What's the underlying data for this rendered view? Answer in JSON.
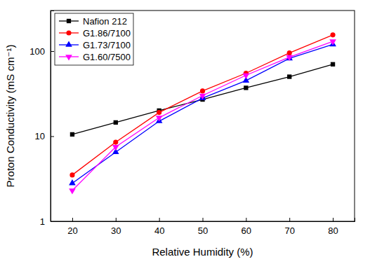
{
  "chart_data": {
    "type": "line",
    "x_label": "Relative Humidity (%)",
    "y_label": "Proton Conductivity (mS cm⁻¹)",
    "x": [
      20,
      30,
      40,
      50,
      60,
      70,
      80
    ],
    "series": [
      {
        "name": "Nafion 212",
        "color": "#000000",
        "marker": "square",
        "values": [
          10.5,
          14.5,
          20,
          27,
          37,
          50,
          70
        ]
      },
      {
        "name": "G1.86/7100",
        "color": "#ff0000",
        "marker": "circle",
        "values": [
          3.5,
          8.5,
          19,
          34,
          55,
          95,
          155
        ]
      },
      {
        "name": "G1.73/7100",
        "color": "#0000ff",
        "marker": "triangle",
        "values": [
          2.8,
          6.5,
          15,
          28,
          45,
          82,
          120
        ]
      },
      {
        "name": "G1.60/7500",
        "color": "#ff00ff",
        "marker": "triangle-down",
        "values": [
          2.3,
          7.5,
          16.5,
          30,
          52,
          85,
          130
        ]
      }
    ],
    "xlim": [
      15,
      85
    ],
    "xticks": [
      20,
      30,
      40,
      50,
      60,
      70,
      80
    ],
    "ylim": [
      1,
      300
    ],
    "yticks": [
      1,
      10,
      100
    ],
    "log": "y",
    "grid": false,
    "legend": "top-left"
  }
}
